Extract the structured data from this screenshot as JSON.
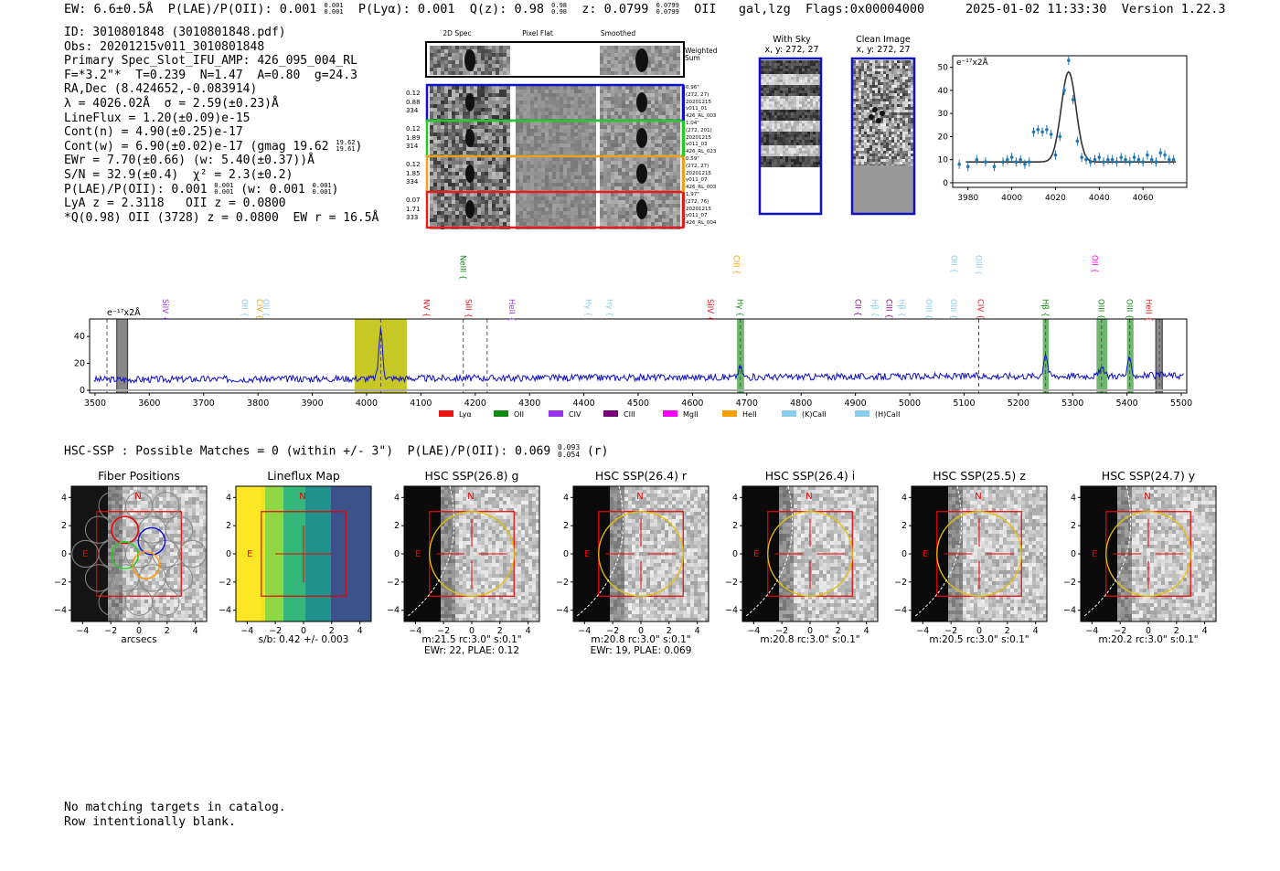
{
  "header": {
    "left": "EW: 6.6±0.5Å  P(LAE)/P(OII): 0.001   P(Lyα): 0.001  Q(z): 0.98     z: 0.0799         OII   gal,lzg  Flags:0x00004000",
    "plae_sup": "0.001",
    "plae_sub": "0.001",
    "qz_sup": "0.98",
    "qz_sub": "0.98",
    "z_sup": "0.0799",
    "z_sub": "0.0799",
    "datetime": "2025-01-02 11:33:30",
    "version": "Version 1.22.3"
  },
  "info": {
    "lines": [
      "ID: 3010801848 (3010801848.pdf)",
      "Obs: 20201215v011_3010801848",
      "Primary Spec_Slot_IFU_AMP: 426_095_004_RL",
      "F=*3.2\"*  T=0.239  N=1.47  A=0.80  g=24.3",
      "RA,Dec (8.424652,-0.083914)",
      "λ = 4026.02Å  σ = 2.59(±0.23)Å",
      "LineFlux = 1.20(±0.09)e-15",
      "Cont(n) = 4.90(±0.25)e-17"
    ],
    "contw": "Cont(w) = 6.90(±0.02)e-17 (gmag 19.62",
    "contw_sup": "19.62",
    "contw_sub": "19.61",
    "ewr": "EWr = 7.70(±0.66) (w: 5.40(±0.37))Å",
    "sn": "S/N = 32.9(±0.4)  χ² = 2.3(±0.2)",
    "plae": "P(LAE)/P(OII): 0.001",
    "plae_sup": "0.001",
    "plae_sub": "0.001",
    "plae_w": "(w: 0.001",
    "plae_w_sup": "0.001",
    "plae_w_sub": "0.001",
    "lya": "LyA z = 2.3118   OII z = 0.0800",
    "q": "*Q(0.98) OII (3728) z = 0.0800  EW r = 16.5Å"
  },
  "stamps": {
    "col_headers": [
      "2D Spec",
      "Pixel Flat",
      "Smoothed"
    ],
    "weighted_label": "Weighted Sum",
    "rows": [
      {
        "left": [
          "0.12",
          "0.88",
          "334"
        ],
        "right": [
          "0.96\"",
          "(272, 27)",
          "20201215",
          "v011_01",
          "426_RL_003"
        ],
        "color": "#1010c8"
      },
      {
        "left": [
          "0.12",
          "1.89",
          "314"
        ],
        "right": [
          "1.04\"",
          "(272, 201)",
          "20201215",
          "v011_03",
          "426_RL_023"
        ],
        "color": "#22cc22"
      },
      {
        "left": [
          "0.12",
          "1.85",
          "334"
        ],
        "right": [
          "0.59\"",
          "(272, 27)",
          "20201215",
          "v011_07",
          "426_RL_003"
        ],
        "color": "#f0a020"
      },
      {
        "left": [
          "0.07",
          "1.71",
          "333"
        ],
        "right": [
          "1.97\"",
          "(272, 76)",
          "20201215",
          "v011_07",
          "426_RL_004"
        ],
        "color": "#e02020"
      }
    ]
  },
  "sky": {
    "title": "With Sky",
    "coord": "x, y: 272, 27"
  },
  "clean": {
    "title": "Clean Image",
    "coord": "x, y: 272, 27"
  },
  "fit_plot": {
    "unit": "e⁻¹⁷x2Å",
    "yticks": [
      "0",
      "10",
      "20",
      "30",
      "40",
      "50"
    ],
    "xticks": [
      "3980",
      "4000",
      "4020",
      "4040",
      "4060"
    ]
  },
  "spectrum": {
    "unit": "e⁻¹⁷x2Å",
    "yticks": [
      "0",
      "20",
      "40"
    ],
    "xticks": [
      "3500",
      "3600",
      "3700",
      "3800",
      "3900",
      "4000",
      "4100",
      "4200",
      "4300",
      "4400",
      "4500",
      "4600",
      "4700",
      "4800",
      "4900",
      "5000",
      "5100",
      "5200",
      "5300",
      "5400",
      "5500"
    ],
    "legend": [
      {
        "label": "Lyα",
        "color": "#ee1111"
      },
      {
        "label": "OII",
        "color": "#118811"
      },
      {
        "label": "CIV",
        "color": "#9933ee"
      },
      {
        "label": "CIII",
        "color": "#770077"
      },
      {
        "label": "MgII",
        "color": "#ff00ff"
      },
      {
        "label": "HeII",
        "color": "#f5a000"
      },
      {
        "label": "(K)CaII",
        "color": "#88ccee"
      },
      {
        "label": "(H)CaII",
        "color": "#88ccee"
      }
    ],
    "lines": [
      {
        "name": "SiIV",
        "x": 3630,
        "color": "#9933ee",
        "row": 1
      },
      {
        "name": "OII",
        "x": 3775,
        "color": "#88ccee",
        "row": 1
      },
      {
        "name": "CIV",
        "x": 3803,
        "color": "#f5a000",
        "row": 1
      },
      {
        "name": "OII",
        "x": 3815,
        "color": "#88ccee",
        "row": 1
      },
      {
        "name": "NV",
        "x": 4110,
        "color": "#ee1111",
        "row": 1
      },
      {
        "name": "NeIII",
        "x": 4178,
        "color": "#118811",
        "row": 0
      },
      {
        "name": "SiII",
        "x": 4188,
        "color": "#ee1111",
        "row": 1
      },
      {
        "name": "HeII",
        "x": 4268,
        "color": "#9933ee",
        "row": 1
      },
      {
        "name": "Hγ",
        "x": 4408,
        "color": "#88ccee",
        "row": 1
      },
      {
        "name": "Hγ",
        "x": 4448,
        "color": "#88ccee",
        "row": 1
      },
      {
        "name": "SiIV",
        "x": 4633,
        "color": "#ee1111",
        "row": 1
      },
      {
        "name": "CIII",
        "x": 4681,
        "color": "#f5a000",
        "row": 0
      },
      {
        "name": "Hγ",
        "x": 4688,
        "color": "#118811",
        "row": 1
      },
      {
        "name": "CII",
        "x": 4905,
        "color": "#770077",
        "row": 1
      },
      {
        "name": "Hβ",
        "x": 4936,
        "color": "#88ccee",
        "row": 1
      },
      {
        "name": "CIII",
        "x": 4962,
        "color": "#770077",
        "row": 1
      },
      {
        "name": "Hβ",
        "x": 4986,
        "color": "#88ccee",
        "row": 1
      },
      {
        "name": "OIII",
        "x": 5035,
        "color": "#88ccee",
        "row": 1
      },
      {
        "name": "OIII",
        "x": 5081,
        "color": "#88ccee",
        "row": 1
      },
      {
        "name": "OII",
        "x": 5082,
        "color": "#88ccee",
        "row": 0
      },
      {
        "name": "OIII",
        "x": 5127,
        "color": "#88ccee",
        "row": 0
      },
      {
        "name": "CIV",
        "x": 5130,
        "color": "#ee1111",
        "row": 1
      },
      {
        "name": "Hβ",
        "x": 5250,
        "color": "#118811",
        "row": 1
      },
      {
        "name": "OII",
        "x": 5341,
        "color": "#ff00ff",
        "row": 0
      },
      {
        "name": "OIII",
        "x": 5353,
        "color": "#118811",
        "row": 1
      },
      {
        "name": "OIII",
        "x": 5405,
        "color": "#118811",
        "row": 1
      },
      {
        "name": "HeII",
        "x": 5440,
        "color": "#ee1111",
        "row": 1
      }
    ]
  },
  "hsc": {
    "header": "HSC-SSP : Possible Matches = 0 (within +/- 3\")  P(LAE)/P(OII): 0.069",
    "plae_sup": "0.093",
    "plae_sub": "0.054",
    "band": "(r)"
  },
  "panels": [
    {
      "title": "Fiber Positions",
      "sub1": "arcsecs",
      "sub2": ""
    },
    {
      "title": "Lineflux Map",
      "sub1": "s/b: 0.42 +/- 0.003",
      "sub2": ""
    },
    {
      "title": "HSC SSP(26.8) g",
      "sub1": "m:21.5 rc:3.0\"  s:0.1\"",
      "sub2": "EWr: 22, PLAE: 0.12"
    },
    {
      "title": "HSC SSP(26.4) r",
      "sub1": "m:20.8 rc:3.0\"  s:0.1\"",
      "sub2": "EWr: 19, PLAE: 0.069"
    },
    {
      "title": "HSC SSP(26.4) i",
      "sub1": "m:20.8 rc:3.0\"  s:0.1\"",
      "sub2": ""
    },
    {
      "title": "HSC SSP(25.5) z",
      "sub1": "m:20.5 rc:3.0\"  s:0.1\"",
      "sub2": ""
    },
    {
      "title": "HSC SSP(24.7) y",
      "sub1": "m:20.2 rc:3.0\"  s:0.1\"",
      "sub2": ""
    }
  ],
  "panel_ticks": [
    "−4",
    "−2",
    "0",
    "2",
    "4"
  ],
  "compass": {
    "n": "N",
    "e": "E"
  },
  "footer": [
    "No matching targets in catalog.",
    "Row intentionally blank."
  ],
  "chart_data": [
    {
      "type": "scatter",
      "title": "",
      "xlabel": "",
      "ylabel": "e⁻¹⁷x2Å",
      "xlim": [
        3973,
        4080
      ],
      "ylim": [
        -2,
        55
      ],
      "x": [
        3976,
        3980,
        3984,
        3988,
        3992,
        3996,
        3998,
        4000,
        4002,
        4004,
        4006,
        4008,
        4010,
        4012,
        4014,
        4016,
        4018,
        4020,
        4022,
        4024,
        4026,
        4028,
        4030,
        4032,
        4034,
        4036,
        4038,
        4040,
        4042,
        4044,
        4046,
        4048,
        4050,
        4052,
        4054,
        4056,
        4058,
        4060,
        4062,
        4064,
        4066,
        4068,
        4070,
        4072,
        4074
      ],
      "y": [
        8,
        7,
        10,
        9,
        7,
        9,
        10,
        11,
        9,
        10,
        8,
        9,
        22,
        23,
        22,
        23,
        21,
        12,
        20,
        40,
        53,
        36,
        18,
        11,
        10,
        9,
        10,
        11,
        9,
        10,
        10,
        9,
        11,
        10,
        9,
        11,
        10,
        9,
        12,
        10,
        9,
        13,
        12,
        10,
        10
      ],
      "fit_model": "gaussian",
      "fit_center": 4026,
      "fit_sigma": 2.59,
      "fit_amplitude": 39,
      "fit_continuum": 9
    },
    {
      "type": "line",
      "title": "",
      "xlabel": "",
      "ylabel": "e⁻¹⁷x2Å",
      "xlim": [
        3490,
        5510
      ],
      "ylim": [
        -2,
        53
      ],
      "series": [
        {
          "name": "",
          "color": "#1010c8"
        }
      ],
      "continuum_level": 11,
      "emission_features": [
        {
          "x": 4026,
          "peak": 47
        },
        {
          "x": 4688,
          "peak": 18
        },
        {
          "x": 5250,
          "peak": 28
        },
        {
          "x": 5353,
          "peak": 17
        },
        {
          "x": 5405,
          "peak": 23
        }
      ],
      "highlight_regions": [
        {
          "x0": 3978,
          "x1": 4074,
          "color": "#bdbd00"
        },
        {
          "x0": 4682,
          "x1": 4695,
          "color": "#55aa55"
        },
        {
          "x0": 5245,
          "x1": 5256,
          "color": "#55aa55"
        },
        {
          "x0": 5344,
          "x1": 5364,
          "color": "#55aa55"
        },
        {
          "x0": 5400,
          "x1": 5412,
          "color": "#55aa55"
        }
      ],
      "hatched_regions": [
        {
          "x0": 3540,
          "x1": 3560
        },
        {
          "x0": 5453,
          "x1": 5465
        }
      ],
      "dashed_lines": [
        3522,
        4026,
        4178,
        4222,
        4688,
        5127,
        5250,
        5353,
        5405,
        5460
      ]
    }
  ]
}
